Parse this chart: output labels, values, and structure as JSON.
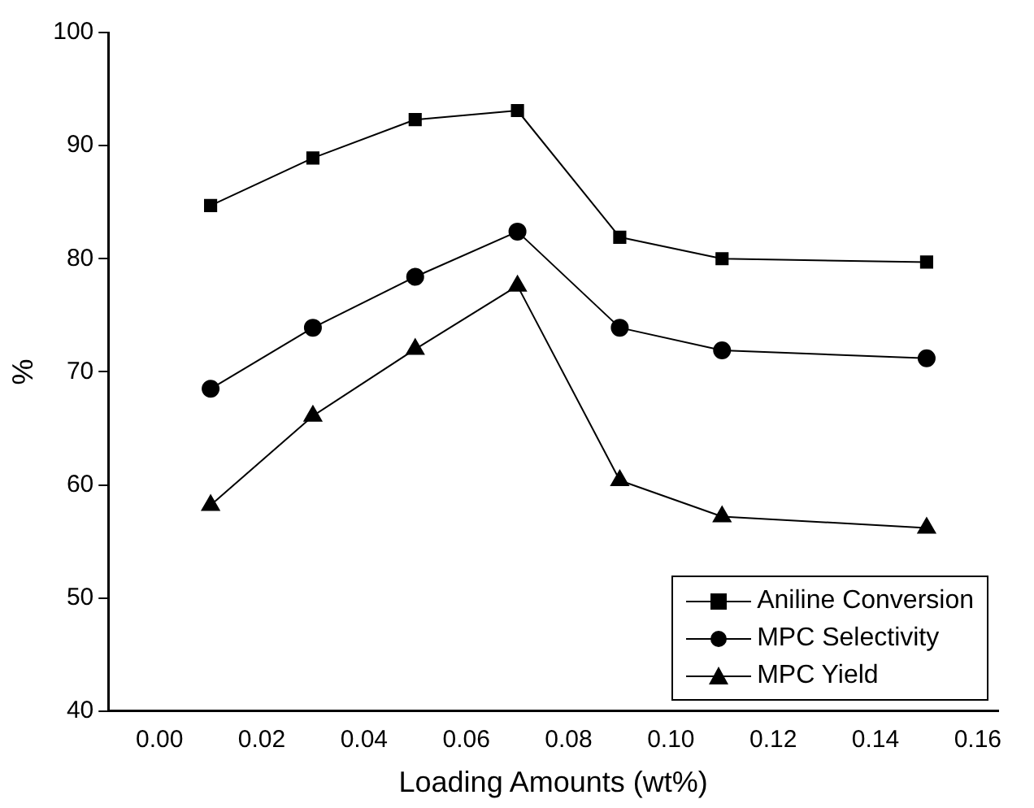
{
  "chart_data": {
    "type": "line",
    "xlabel": "Loading Amounts (wt%)",
    "ylabel": "%",
    "x": [
      0.01,
      0.03,
      0.05,
      0.07,
      0.09,
      0.11,
      0.15
    ],
    "series": [
      {
        "name": "Aniline Conversion",
        "color": "#000000",
        "marker": "square",
        "values": [
          84.7,
          88.9,
          92.3,
          93.1,
          81.9,
          80.0,
          79.7
        ]
      },
      {
        "name": "MPC Selectivity",
        "color": "#000000",
        "marker": "circle",
        "values": [
          68.5,
          73.9,
          78.4,
          82.4,
          73.9,
          71.9,
          71.2
        ]
      },
      {
        "name": "MPC Yield",
        "color": "#000000",
        "marker": "triangle",
        "values": [
          58.2,
          66.1,
          72.0,
          77.6,
          60.4,
          57.2,
          56.2
        ]
      }
    ],
    "xlim": [
      -0.01,
      0.164
    ],
    "xticks": [
      {
        "value": 0,
        "label": "0.00"
      },
      {
        "value": 0.02,
        "label": "0.02"
      },
      {
        "value": 0.04,
        "label": "0.04"
      },
      {
        "value": 0.06,
        "label": "0.06"
      },
      {
        "value": 0.08,
        "label": "0.08"
      },
      {
        "value": 0.1,
        "label": "0.10"
      },
      {
        "value": 0.12,
        "label": "0.12"
      },
      {
        "value": 0.14,
        "label": "0.14"
      },
      {
        "value": 0.16,
        "label": "0.16"
      }
    ],
    "ylim": [
      40,
      100
    ],
    "yticks": [
      40,
      50,
      60,
      70,
      80,
      90,
      100
    ],
    "grid": false,
    "legend": "bottom right",
    "line_style": "solid"
  }
}
